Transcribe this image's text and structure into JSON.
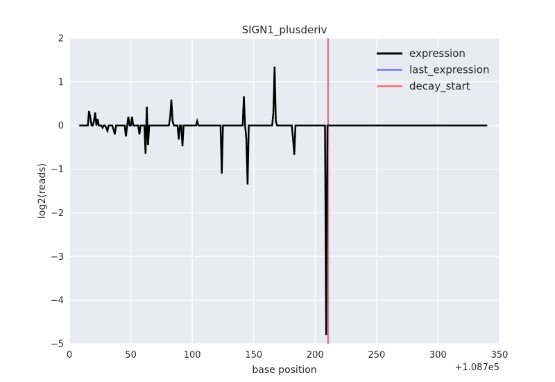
{
  "chart_data": {
    "type": "line",
    "title": "SIGN1_plusderiv",
    "xlabel": "base position",
    "ylabel": "log2(reads)",
    "offset_label": "+1.087e5",
    "xlim": [
      0,
      350
    ],
    "ylim": [
      -5,
      2
    ],
    "xticks": [
      0,
      50,
      100,
      150,
      200,
      250,
      300,
      350
    ],
    "yticks": [
      -5,
      -4,
      -3,
      -2,
      -1,
      0,
      1,
      2
    ],
    "xtick_labels": [
      "0",
      "50",
      "100",
      "150",
      "200",
      "250",
      "300",
      "350"
    ],
    "ytick_labels": [
      "−5",
      "−4",
      "−3",
      "−2",
      "−1",
      "0",
      "1",
      "2"
    ],
    "grid": true,
    "legend_position": "top-right",
    "series": [
      {
        "name": "expression",
        "color": "#000000",
        "x": [
          8,
          15,
          16,
          17,
          18,
          19,
          20,
          21,
          22,
          23,
          24,
          26,
          27,
          28,
          29,
          30,
          31,
          32,
          33,
          34,
          35,
          37,
          38,
          39,
          45,
          46,
          47,
          48,
          49,
          50,
          51,
          52,
          56,
          57,
          58,
          61,
          62,
          63,
          64,
          65,
          66,
          81,
          82,
          83,
          84,
          85,
          88,
          89,
          90,
          91,
          92,
          93,
          102,
          103,
          104,
          105,
          106,
          123,
          124,
          125,
          140,
          141,
          142,
          143,
          144,
          145,
          146,
          165,
          166,
          167,
          168,
          169,
          181,
          182,
          183,
          184,
          207,
          208,
          209,
          210,
          340
        ],
        "y": [
          0,
          0,
          0.33,
          0.2,
          0,
          0,
          0.1,
          0.3,
          0,
          0.15,
          0,
          0,
          -0.05,
          0,
          0,
          -0.05,
          -0.12,
          0,
          0,
          0,
          0,
          -0.2,
          0,
          0,
          0,
          -0.25,
          0,
          0.2,
          0,
          0,
          0.2,
          0,
          0,
          -0.2,
          0,
          0,
          -0.65,
          0.43,
          -0.45,
          0,
          0,
          0,
          0.2,
          0.59,
          0.1,
          0,
          0,
          -0.32,
          0,
          0,
          -0.47,
          0,
          0,
          0,
          0.1,
          0,
          0,
          0,
          -1.1,
          0,
          0,
          0,
          0.67,
          0,
          -0.3,
          -1.35,
          0,
          0,
          0.3,
          1.35,
          0.1,
          0,
          0,
          -0.3,
          -0.67,
          0,
          0,
          0,
          -4.8,
          0,
          0
        ]
      },
      {
        "name": "last_expression",
        "color": "#7777ee",
        "x": [
          210.5
        ]
      },
      {
        "name": "decay_start",
        "color": "#ee7777",
        "x": [
          210.5
        ]
      }
    ]
  }
}
